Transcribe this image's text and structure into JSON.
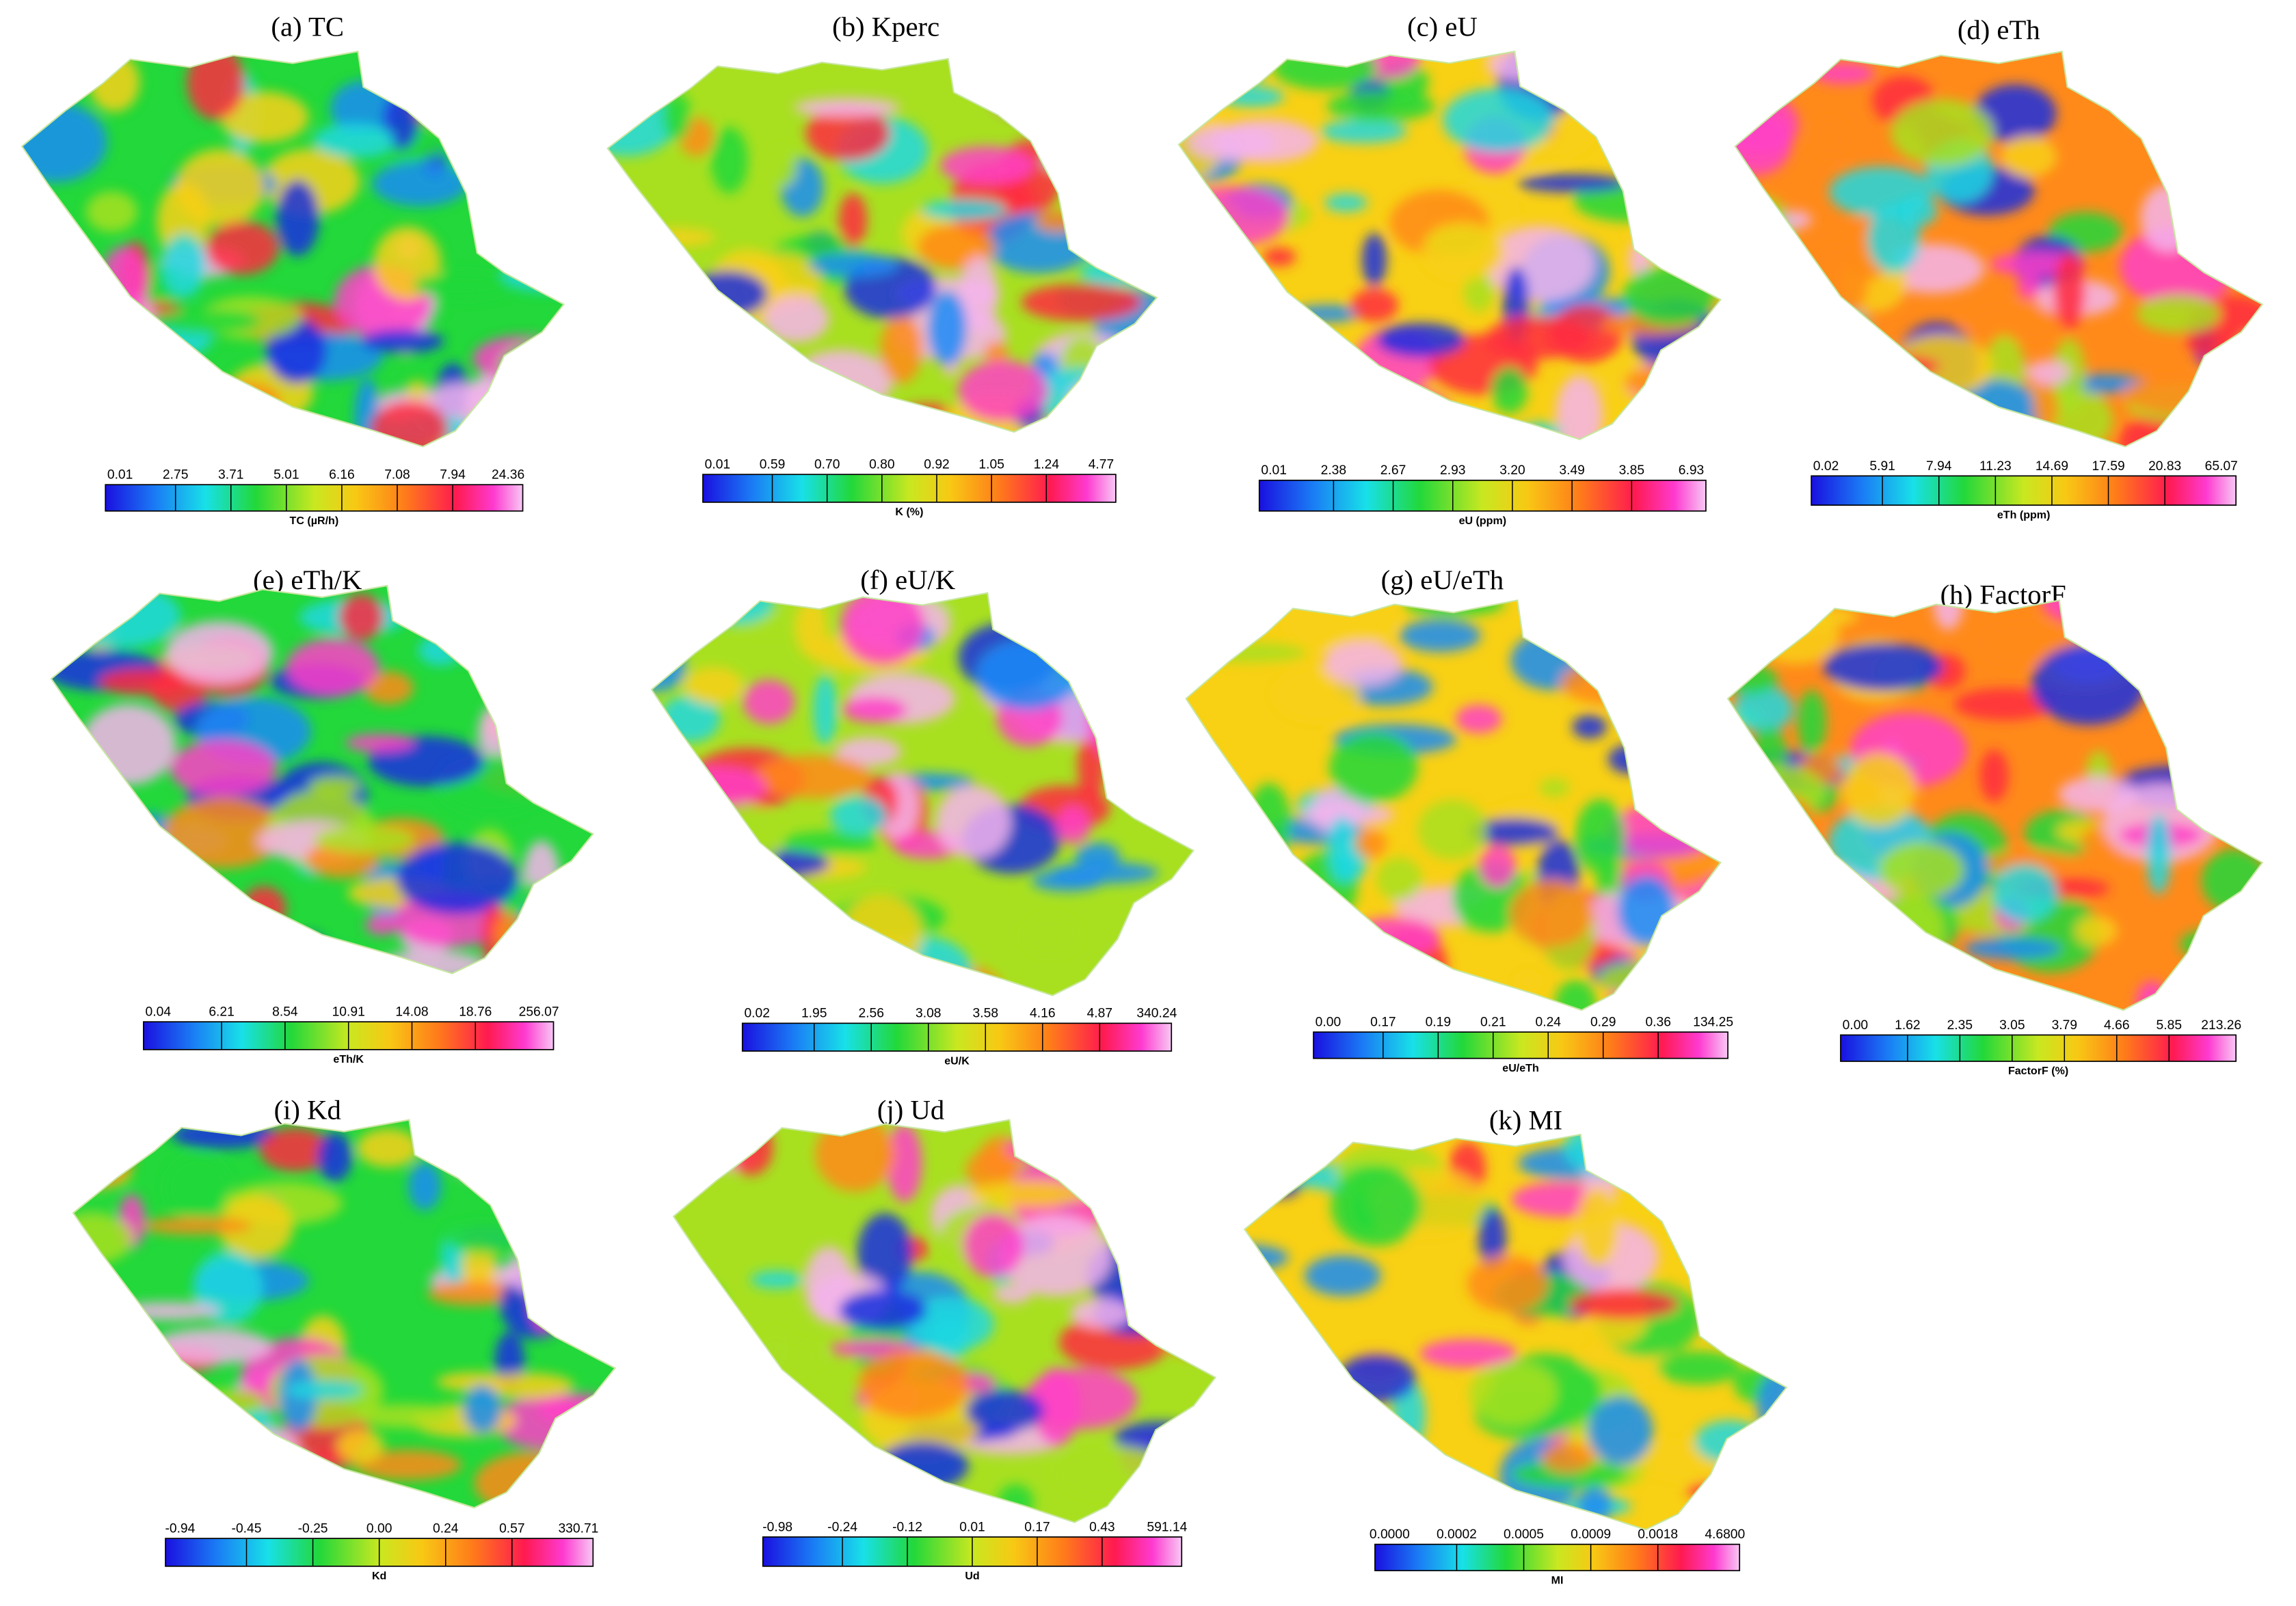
{
  "panels": [
    {
      "title": "(a) TC",
      "legend": {
        "ticks": [
          "0.01",
          "2.75",
          "3.71",
          "5.01",
          "6.16",
          "7.08",
          "7.94",
          "24.36"
        ],
        "label": "TC (µR/h)"
      }
    },
    {
      "title": "(b) Kperc",
      "legend": {
        "ticks": [
          "0.01",
          "0.59",
          "0.70",
          "0.80",
          "0.92",
          "1.05",
          "1.24",
          "4.77"
        ],
        "label": "K (%)"
      }
    },
    {
      "title": "(c) eU",
      "legend": {
        "ticks": [
          "0.01",
          "2.38",
          "2.67",
          "2.93",
          "3.20",
          "3.49",
          "3.85",
          "6.93"
        ],
        "label": "eU (ppm)"
      }
    },
    {
      "title": "(d) eTh",
      "legend": {
        "ticks": [
          "0.02",
          "5.91",
          "7.94",
          "11.23",
          "14.69",
          "17.59",
          "20.83",
          "65.07"
        ],
        "label": "eTh (ppm)"
      }
    },
    {
      "title": "(e) eTh/K",
      "legend": {
        "ticks": [
          "0.04",
          "6.21",
          "8.54",
          "10.91",
          "14.08",
          "18.76",
          "256.07"
        ],
        "label": "eTh/K"
      }
    },
    {
      "title": "(f) eU/K",
      "legend": {
        "ticks": [
          "0.02",
          "1.95",
          "2.56",
          "3.08",
          "3.58",
          "4.16",
          "4.87",
          "340.24"
        ],
        "label": "eU/K"
      }
    },
    {
      "title": "(g) eU/eTh",
      "legend": {
        "ticks": [
          "0.00",
          "0.17",
          "0.19",
          "0.21",
          "0.24",
          "0.29",
          "0.36",
          "134.25"
        ],
        "label": "eU/eTh"
      }
    },
    {
      "title": "(h) FactorF",
      "legend": {
        "ticks": [
          "0.00",
          "1.62",
          "2.35",
          "3.05",
          "3.79",
          "4.66",
          "5.85",
          "213.26"
        ],
        "label": "FactorF (%)"
      }
    },
    {
      "title": "(i) Kd",
      "legend": {
        "ticks": [
          "-0.94",
          "-0.45",
          "-0.25",
          "0.00",
          "0.24",
          "0.57",
          "330.71"
        ],
        "label": "Kd"
      }
    },
    {
      "title": "(j) Ud",
      "legend": {
        "ticks": [
          "-0.98",
          "-0.24",
          "-0.12",
          "0.01",
          "0.17",
          "0.43",
          "591.14"
        ],
        "label": "Ud"
      }
    },
    {
      "title": "(k) MI",
      "legend": {
        "ticks": [
          "0.0000",
          "0.0002",
          "0.0005",
          "0.0009",
          "0.0018",
          "4.6800"
        ],
        "label": "MI"
      }
    }
  ]
}
